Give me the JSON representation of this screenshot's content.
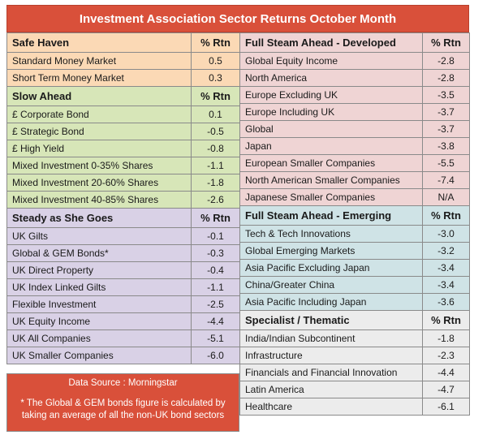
{
  "title": "Investment Association Sector Returns October Month",
  "col_header": "% Rtn",
  "left": [
    {
      "heading": "Safe Haven",
      "color": "#fbd9b5",
      "rows": [
        {
          "name": "Standard Money Market",
          "value": "0.5"
        },
        {
          "name": "Short Term Money Market",
          "value": "0.3"
        }
      ]
    },
    {
      "heading": "Slow Ahead",
      "color": "#d7e6b8",
      "rows": [
        {
          "name": "£ Corporate Bond",
          "value": "0.1"
        },
        {
          "name": "£ Strategic Bond",
          "value": "-0.5"
        },
        {
          "name": "£ High Yield",
          "value": "-0.8"
        },
        {
          "name": "Mixed Investment 0-35% Shares",
          "value": "-1.1"
        },
        {
          "name": "Mixed Investment 20-60% Shares",
          "value": "-1.8"
        },
        {
          "name": "Mixed Investment 40-85% Shares",
          "value": "-2.6"
        }
      ]
    },
    {
      "heading": "Steady as She Goes",
      "color": "#d9d1e6",
      "rows": [
        {
          "name": "UK Gilts",
          "value": "-0.1"
        },
        {
          "name": "Global & GEM Bonds*",
          "value": "-0.3"
        },
        {
          "name": "UK Direct Property",
          "value": "-0.4"
        },
        {
          "name": "UK Index Linked Gilts",
          "value": "-1.1"
        },
        {
          "name": "Flexible Investment",
          "value": "-2.5"
        },
        {
          "name": "UK Equity Income",
          "value": "-4.4"
        },
        {
          "name": "UK All Companies",
          "value": "-5.1"
        },
        {
          "name": "UK Smaller Companies",
          "value": "-6.0"
        }
      ]
    }
  ],
  "right": [
    {
      "heading": "Full Steam Ahead - Developed",
      "color": "#efd4d4",
      "rows": [
        {
          "name": "Global Equity Income",
          "value": "-2.8"
        },
        {
          "name": "North America",
          "value": "-2.8"
        },
        {
          "name": "Europe Excluding UK",
          "value": "-3.5"
        },
        {
          "name": "Europe Including UK",
          "value": "-3.7"
        },
        {
          "name": "Global",
          "value": "-3.7"
        },
        {
          "name": "Japan",
          "value": "-3.8"
        },
        {
          "name": "European Smaller Companies",
          "value": "-5.5"
        },
        {
          "name": "North American Smaller Companies",
          "value": "-7.4"
        },
        {
          "name": "Japanese Smaller Companies",
          "value": "N/A"
        }
      ]
    },
    {
      "heading": "Full Steam Ahead - Emerging",
      "color": "#cfe3e6",
      "rows": [
        {
          "name": "Tech & Tech Innovations",
          "value": "-3.0"
        },
        {
          "name": "Global Emerging Markets",
          "value": "-3.2"
        },
        {
          "name": "Asia Pacific Excluding Japan",
          "value": "-3.4"
        },
        {
          "name": "China/Greater China",
          "value": "-3.4"
        },
        {
          "name": "Asia Pacific Including Japan",
          "value": "-3.6"
        }
      ]
    },
    {
      "heading": "Specialist / Thematic",
      "color": "#ececec",
      "rows": [
        {
          "name": "India/Indian Subcontinent",
          "value": "-1.8"
        },
        {
          "name": "Infrastructure",
          "value": "-2.3"
        },
        {
          "name": "Financials and Financial Innovation",
          "value": "-4.4"
        },
        {
          "name": "Latin America",
          "value": "-4.7"
        },
        {
          "name": "Healthcare",
          "value": "-6.1"
        }
      ]
    }
  ],
  "data_source": "Data Source : Morningstar",
  "footnote": "* The Global & GEM bonds figure is calculated by taking an average of all the non-UK bond sectors"
}
